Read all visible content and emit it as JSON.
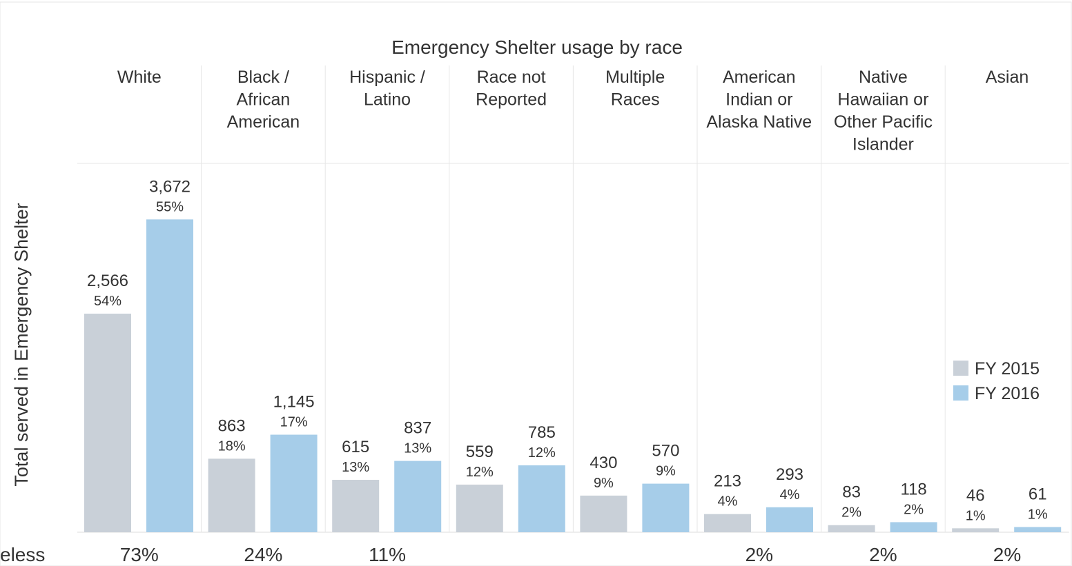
{
  "chart_data": {
    "type": "bar",
    "title": "Emergency Shelter usage by race",
    "y_label": "Total served in Emergency Shelter",
    "categories": [
      "White",
      "Black /\nAfrican\nAmerican",
      "Hispanic /\nLatino",
      "Race not\nReported",
      "Multiple\nRaces",
      "American\nIndian or\nAlaska Native",
      "Native\nHawaiian or\nOther Pacific\nIslander",
      "Asian"
    ],
    "series": [
      {
        "name": "FY 2015",
        "color": "#c9d0d8",
        "values": [
          2566,
          863,
          615,
          559,
          430,
          213,
          83,
          46
        ],
        "value_labels": [
          "2,566",
          "863",
          "615",
          "559",
          "430",
          "213",
          "83",
          "46"
        ],
        "percent_labels": [
          "54%",
          "18%",
          "13%",
          "12%",
          "9%",
          "4%",
          "2%",
          "1%"
        ]
      },
      {
        "name": "FY 2016",
        "color": "#a6cde9",
        "values": [
          3672,
          1145,
          837,
          785,
          570,
          293,
          118,
          61
        ],
        "value_labels": [
          "3,672",
          "1,145",
          "837",
          "785",
          "570",
          "293",
          "118",
          "61"
        ],
        "percent_labels": [
          "55%",
          "17%",
          "13%",
          "12%",
          "9%",
          "4%",
          "2%",
          "1%"
        ]
      }
    ],
    "ylim": [
      0,
      4330
    ],
    "legend": "right",
    "footer_title": "eless",
    "footer_labels": [
      "73%",
      "24%",
      "11%",
      null,
      null,
      "2%",
      "2%",
      "2%"
    ],
    "footer_color": "#e8803a"
  }
}
